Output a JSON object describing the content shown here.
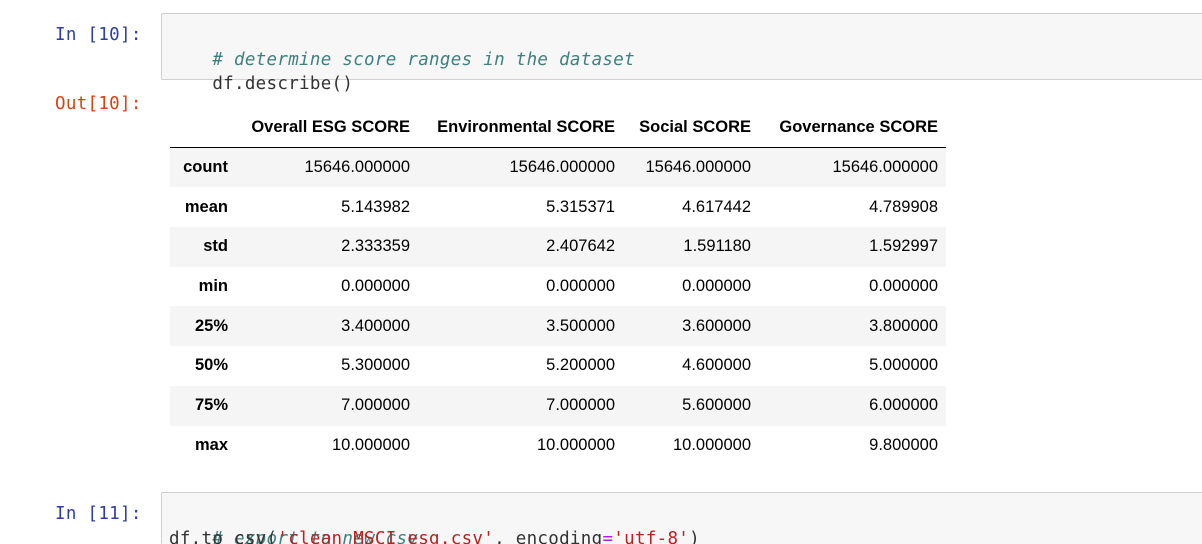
{
  "cells": [
    {
      "in_prompt": "In [10]:",
      "out_prompt": "Out[10]:",
      "code_comment": "# determine score ranges in the dataset",
      "code_line": "df.describe()"
    },
    {
      "in_prompt": "In [11]:",
      "code_comment": "# export to new csv",
      "code_prefix": "df.to_csv(",
      "code_str1": "'clean_MSCI_esg.csv'",
      "code_mid": ", encoding",
      "code_op": "=",
      "code_str2": "'utf-8'",
      "code_suffix": ")"
    }
  ],
  "table": {
    "columns": [
      "",
      "Overall ESG SCORE",
      "Environmental SCORE",
      "Social SCORE",
      "Governance SCORE"
    ],
    "rows": [
      {
        "label": "count",
        "values": [
          "15646.000000",
          "15646.000000",
          "15646.000000",
          "15646.000000"
        ]
      },
      {
        "label": "mean",
        "values": [
          "5.143982",
          "5.315371",
          "4.617442",
          "4.789908"
        ]
      },
      {
        "label": "std",
        "values": [
          "2.333359",
          "2.407642",
          "1.591180",
          "1.592997"
        ]
      },
      {
        "label": "min",
        "values": [
          "0.000000",
          "0.000000",
          "0.000000",
          "0.000000"
        ]
      },
      {
        "label": "25%",
        "values": [
          "3.400000",
          "3.500000",
          "3.600000",
          "3.800000"
        ]
      },
      {
        "label": "50%",
        "values": [
          "5.300000",
          "5.200000",
          "4.600000",
          "5.000000"
        ]
      },
      {
        "label": "75%",
        "values": [
          "7.000000",
          "7.000000",
          "5.600000",
          "6.000000"
        ]
      },
      {
        "label": "max",
        "values": [
          "10.000000",
          "10.000000",
          "10.000000",
          "9.800000"
        ]
      }
    ]
  },
  "colors": {
    "in_prompt": "#303f9f",
    "out_prompt": "#d84315",
    "comment": "#408080",
    "string": "#ba2121",
    "operator": "#aa22ff",
    "cell_bg": "#f7f7f7",
    "row_stripe": "#f5f5f5"
  }
}
